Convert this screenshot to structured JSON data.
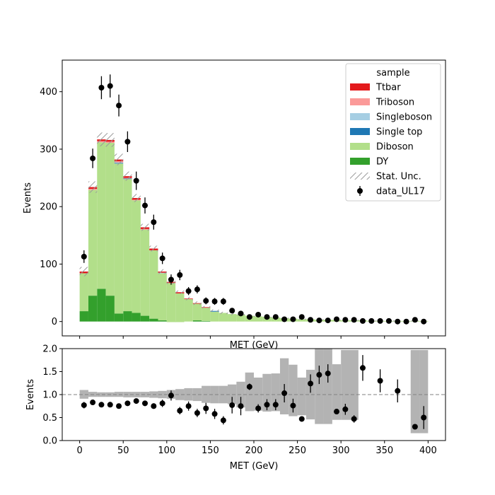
{
  "chart_data": {
    "type": "bar",
    "legend_title": "sample",
    "legend_position": "upper-right",
    "bin_edges": [
      0,
      10,
      20,
      30,
      40,
      50,
      60,
      70,
      80,
      90,
      100,
      110,
      120,
      130,
      140,
      150,
      160,
      170,
      180,
      190,
      200,
      210,
      220,
      230,
      240,
      250,
      260,
      270,
      280,
      290,
      300,
      310,
      320,
      330,
      340,
      350,
      360,
      370,
      380,
      390,
      400
    ],
    "main": {
      "xlabel": "MET (GeV)",
      "ylabel": "Events",
      "xlim": [
        -20,
        420
      ],
      "ylim": [
        -25,
        455
      ],
      "xticks": [
        "0",
        "50",
        "100",
        "150",
        "200",
        "250",
        "300",
        "350",
        "400"
      ],
      "yticks": [
        "0",
        "100",
        "200",
        "300",
        "400"
      ],
      "stack": [
        {
          "name": "DY",
          "color": "#33a02c",
          "values": [
            18,
            45,
            57,
            45,
            14,
            18,
            15,
            10,
            5,
            2,
            -1,
            -1,
            0,
            2,
            1,
            0,
            0,
            0,
            0,
            0,
            0,
            0,
            0,
            0,
            0,
            0,
            0,
            0,
            0,
            0,
            0,
            0,
            0,
            0,
            0,
            0,
            0,
            0,
            0,
            0
          ]
        },
        {
          "name": "Diboson",
          "color": "#b2df8a",
          "values": [
            66,
            184,
            255,
            266,
            261,
            230,
            196,
            150,
            119,
            82,
            68,
            50,
            39,
            29,
            23,
            17,
            15,
            13,
            12,
            10,
            9,
            8,
            7,
            6,
            5,
            4,
            4,
            3,
            3,
            3,
            2,
            2,
            2,
            1,
            1,
            1,
            1,
            1,
            1,
            1
          ]
        },
        {
          "name": "Single top",
          "color": "#1f78b4",
          "values": [
            0,
            0,
            0,
            0,
            1,
            1,
            0,
            0,
            0,
            0,
            0,
            0,
            0,
            0,
            0,
            1,
            0,
            0,
            0,
            0,
            0,
            0,
            0,
            0,
            0,
            0,
            0,
            0,
            0,
            0,
            0,
            0,
            0,
            0,
            0,
            0,
            0,
            0,
            0,
            0
          ]
        },
        {
          "name": "Singleboson",
          "color": "#a6cee3",
          "values": [
            0,
            0,
            0,
            0,
            1,
            0,
            0,
            0,
            0,
            1,
            0,
            0,
            0,
            0,
            0,
            1,
            0,
            0,
            0,
            0,
            0,
            0,
            0,
            0,
            0,
            0,
            0,
            0,
            0,
            0,
            0,
            0,
            0,
            0,
            0,
            0,
            0,
            0,
            0,
            0
          ]
        },
        {
          "name": "Triboson",
          "color": "#fb9a99",
          "values": [
            0,
            2,
            2,
            2,
            2,
            1,
            1,
            1,
            0,
            0,
            0,
            0,
            0,
            0,
            0,
            0,
            0,
            0,
            0,
            0,
            0,
            0,
            0,
            0,
            0,
            0,
            0,
            0,
            0,
            0,
            0,
            0,
            0,
            0,
            0,
            0,
            0,
            0,
            0,
            0
          ]
        },
        {
          "name": "Ttbar",
          "color": "#e31a1c",
          "values": [
            3,
            3,
            3,
            3,
            3,
            3,
            3,
            3,
            3,
            2,
            2,
            2,
            1,
            1,
            1,
            0,
            0,
            0,
            0,
            0,
            0,
            0,
            0,
            0,
            0,
            0,
            0,
            0,
            0,
            0,
            0,
            0,
            0,
            0,
            0,
            0,
            0,
            0,
            0,
            0
          ]
        }
      ],
      "stat_unc": {
        "name": "Stat. Unc.",
        "values": [
          8,
          10,
          12,
          12,
          10,
          8,
          7,
          6,
          5,
          4,
          4,
          3,
          3,
          3,
          2,
          2,
          2,
          2,
          1,
          1,
          1,
          1,
          1,
          1,
          1,
          1,
          1,
          1,
          1,
          1,
          1,
          1,
          1,
          1,
          1,
          1,
          1,
          1,
          1,
          1
        ]
      },
      "data": {
        "name": "data_UL17",
        "x": [
          5,
          15,
          25,
          35,
          45,
          55,
          65,
          75,
          85,
          95,
          105,
          115,
          125,
          135,
          145,
          155,
          165,
          175,
          185,
          195,
          205,
          215,
          225,
          235,
          245,
          255,
          265,
          275,
          285,
          295,
          305,
          315,
          325,
          335,
          345,
          355,
          365,
          375,
          385,
          395
        ],
        "y": [
          113,
          284,
          407,
          410,
          376,
          313,
          245,
          202,
          173,
          110,
          73,
          81,
          53,
          56,
          36,
          35,
          35,
          19,
          14,
          8,
          12,
          8,
          8,
          4,
          4,
          8,
          3,
          2,
          2,
          4,
          3,
          3,
          1,
          1,
          1,
          1,
          0,
          0,
          3,
          0
        ],
        "yerr": [
          11,
          17,
          20,
          20,
          19,
          18,
          16,
          14,
          13,
          10,
          9,
          9,
          7,
          7,
          6,
          6,
          6,
          4,
          4,
          3,
          3,
          3,
          3,
          2,
          2,
          3,
          2,
          1,
          1,
          2,
          2,
          2,
          1,
          1,
          1,
          1,
          1,
          1,
          2,
          1
        ]
      }
    },
    "ratio": {
      "xlabel": "MET (GeV)",
      "ylabel": "Events",
      "xlim": [
        -20,
        420
      ],
      "ylim": [
        0.0,
        2.0
      ],
      "xticks": [
        "0",
        "50",
        "100",
        "150",
        "200",
        "250",
        "300",
        "350",
        "400"
      ],
      "yticks": [
        "0.0",
        "0.5",
        "1.0",
        "1.5",
        "2.0"
      ],
      "reference_line": 1.0,
      "band_low": [
        0.91,
        0.95,
        0.95,
        0.95,
        0.95,
        0.94,
        0.94,
        0.94,
        0.93,
        0.92,
        0.91,
        0.88,
        0.87,
        0.86,
        0.82,
        0.81,
        0.81,
        0.79,
        0.72,
        0.64,
        0.65,
        0.63,
        0.64,
        0.57,
        0.53,
        0.55,
        0.46,
        0.36,
        0.36,
        0.45,
        0.45,
        0.45,
        null,
        null,
        null,
        null,
        null,
        null,
        0.16,
        0.16
      ],
      "band_high": [
        1.1,
        1.06,
        1.05,
        1.05,
        1.06,
        1.06,
        1.06,
        1.06,
        1.07,
        1.08,
        1.1,
        1.12,
        1.14,
        1.14,
        1.19,
        1.19,
        1.19,
        1.22,
        1.28,
        1.48,
        1.37,
        1.45,
        1.46,
        1.79,
        1.65,
        1.37,
        1.54,
        2.0,
        2.0,
        1.66,
        1.97,
        1.97,
        null,
        null,
        null,
        null,
        null,
        null,
        1.97,
        1.97
      ],
      "points": {
        "x": [
          5,
          15,
          25,
          35,
          45,
          55,
          65,
          75,
          85,
          95,
          105,
          115,
          125,
          135,
          145,
          155,
          165,
          175,
          185,
          195,
          205,
          215,
          225,
          235,
          245,
          255,
          265,
          275,
          285,
          295,
          305,
          315,
          325,
          345,
          365,
          385,
          395
        ],
        "y": [
          0.77,
          0.83,
          0.78,
          0.78,
          0.75,
          0.81,
          0.86,
          0.81,
          0.75,
          0.81,
          0.98,
          0.65,
          0.75,
          0.6,
          0.7,
          0.58,
          0.44,
          0.77,
          0.75,
          1.17,
          0.7,
          0.78,
          0.78,
          1.03,
          0.76,
          0.47,
          1.24,
          1.43,
          1.46,
          0.63,
          0.68,
          0.47,
          1.58,
          1.3,
          1.08,
          0.3,
          0.5
        ],
        "yerr": [
          0.07,
          0.05,
          0.04,
          0.04,
          0.04,
          0.05,
          0.05,
          0.06,
          0.06,
          0.08,
          0.11,
          0.08,
          0.1,
          0.09,
          0.12,
          0.11,
          0.09,
          0.18,
          0.2,
          0.07,
          0.09,
          0.12,
          0.12,
          0.2,
          0.15,
          0.05,
          0.2,
          0.2,
          0.2,
          0.05,
          0.12,
          0.08,
          0.28,
          0.25,
          0.25,
          0.03,
          0.25
        ]
      }
    }
  }
}
